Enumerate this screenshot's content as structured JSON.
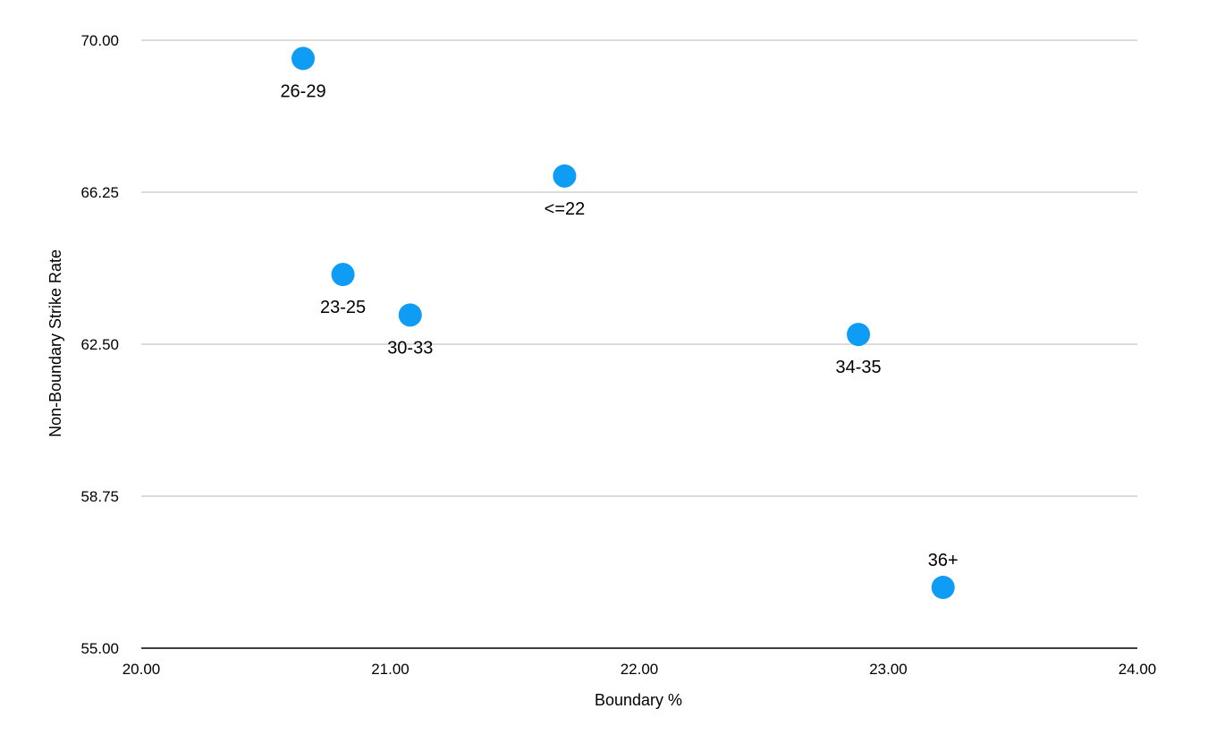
{
  "chart_data": {
    "type": "scatter",
    "title": "",
    "xlabel": "Boundary %",
    "ylabel": "Non-Boundary Strike Rate",
    "xlim": [
      20.0,
      24.0
    ],
    "ylim": [
      55.0,
      70.0
    ],
    "x_ticks": [
      "20.00",
      "21.00",
      "22.00",
      "23.00",
      "24.00"
    ],
    "y_ticks": [
      "55.00",
      "58.75",
      "62.50",
      "66.25",
      "70.00"
    ],
    "grid": "horizontal",
    "point_color": "#0f9cf5",
    "points": [
      {
        "label": "26-29",
        "x": 20.65,
        "y": 69.55,
        "label_position": "below"
      },
      {
        "label": "<=22",
        "x": 21.7,
        "y": 66.65,
        "label_position": "below"
      },
      {
        "label": "23-25",
        "x": 20.81,
        "y": 64.22,
        "label_position": "below"
      },
      {
        "label": "30-33",
        "x": 21.08,
        "y": 63.22,
        "label_position": "below"
      },
      {
        "label": "34-35",
        "x": 22.88,
        "y": 62.74,
        "label_position": "below"
      },
      {
        "label": "36+",
        "x": 23.22,
        "y": 56.5,
        "label_position": "above"
      }
    ]
  }
}
